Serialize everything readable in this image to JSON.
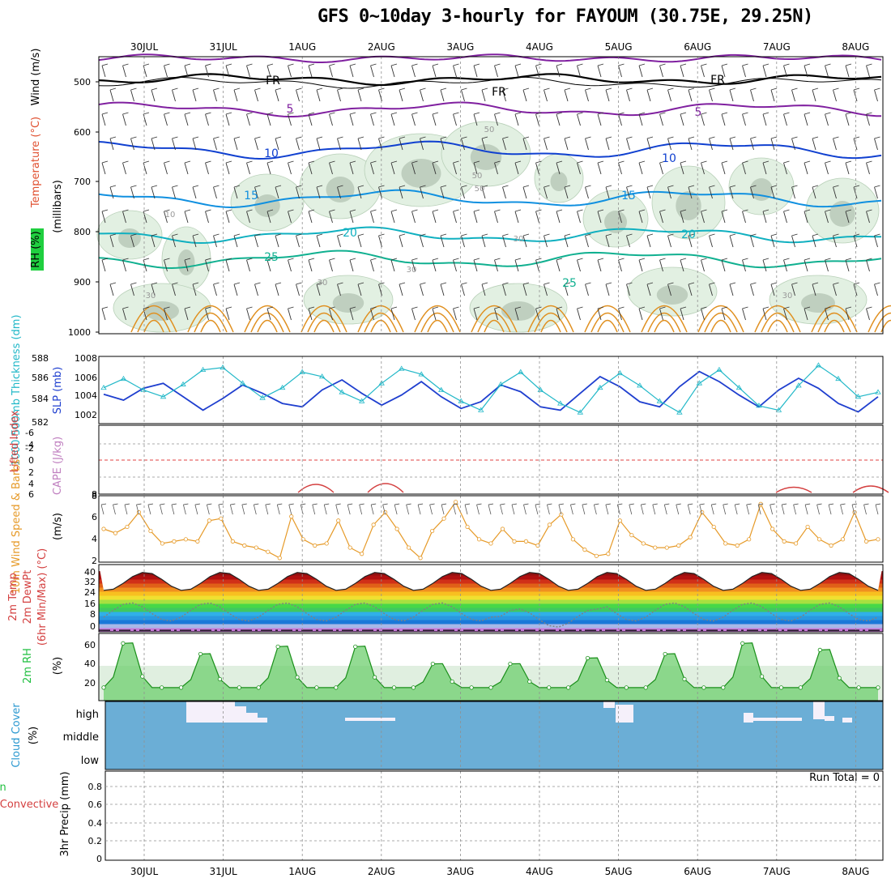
{
  "title": "GFS 0~10day 3-hourly for FAYOUM (30.75E, 29.25N)",
  "dates": [
    "30JUL",
    "31JUL",
    "1AUG",
    "2AUG",
    "3AUG",
    "4AUG",
    "5AUG",
    "6AUG",
    "7AUG",
    "8AUG"
  ],
  "colors": {
    "grid": "#999999",
    "panel_border": "#000000",
    "cloud": "#6baed6",
    "rh_fill": "#1fbf3f",
    "slp": "#1f3fcf",
    "thickness": "#22b8c8",
    "wind10": "#e69a28",
    "lifted": "#d44040",
    "cape": "#c080c0"
  },
  "panels": {
    "upper": {
      "ylabel_wind": "Wind (m/s)",
      "ylabel_temp": "Temperature (°C)",
      "ylabel_rh": "RH (%)",
      "ylabel_mb": "(millibars)",
      "yticks": [
        "500",
        "600",
        "700",
        "800",
        "900",
        "1000"
      ],
      "contour_labels": [
        "FR",
        "FR",
        "FR",
        "5",
        "5",
        "10",
        "10",
        "15",
        "15",
        "20",
        "20",
        "25",
        "25",
        "10",
        "30",
        "30",
        "30",
        "30",
        "30",
        "50",
        "50",
        "50"
      ]
    },
    "slp": {
      "ylabel_thick": "1000-500mb Thickness (dm)",
      "ylabel_slp": "SLP (mb)",
      "yticks_left": [
        "588",
        "586",
        "584",
        "582"
      ],
      "yticks_right": [
        "1008",
        "1006",
        "1004",
        "1002"
      ]
    },
    "cape": {
      "ylabel_li": "Lifted Index",
      "ylabel_cape": "CAPE (J/kg)",
      "yticks_left": [
        "-6",
        "-4",
        "-2",
        "0",
        "2",
        "4",
        "6"
      ],
      "yticks_right": [
        "8"
      ]
    },
    "wind10": {
      "ylabel": "10m Wind Speed & Barbs",
      "ylabel_unit": "(m/s)",
      "yticks": [
        "8",
        "6",
        "4",
        "2"
      ]
    },
    "temp": {
      "ylabel_a": "2m Temp",
      "ylabel_b": "2m DewPt",
      "ylabel_c": "(6hr Min/Max) (°C)",
      "yticks": [
        "40",
        "32",
        "24",
        "16",
        "8",
        "0"
      ]
    },
    "rh": {
      "ylabel": "2m RH",
      "ylabel_unit": "(%)",
      "yticks": [
        "60",
        "40",
        "20"
      ]
    },
    "cloud": {
      "ylabel": "Cloud Cover",
      "ylabel_unit": "(%)",
      "levels": [
        "high",
        "middle",
        "low"
      ]
    },
    "precip": {
      "ylabel_a": "Total / Rain",
      "ylabel_b": "Convective",
      "ylabel_c": "3hr Precip (mm)",
      "yticks": [
        "0.8",
        "0.6",
        "0.4",
        "0.2",
        "0"
      ],
      "run_total": "Run Total = 0"
    }
  },
  "chart_data": [
    {
      "type": "line",
      "title": "GFS 0~10day 3-hourly for FAYOUM (30.75E, 29.25N)",
      "x": [
        "30JUL",
        "31JUL",
        "1AUG",
        "2AUG",
        "3AUG",
        "4AUG",
        "5AUG",
        "6AUG",
        "7AUG",
        "8AUG"
      ],
      "series": [
        {
          "name": "SLP (mb)",
          "values": [
            1004.5,
            1005.5,
            1003.0,
            1006.0,
            1002.5,
            1006.5,
            1003.0,
            1007.5,
            1003.0,
            1004.0
          ]
        },
        {
          "name": "1000-500mb Thickness (dm)",
          "values": [
            585.0,
            587.0,
            584.5,
            586.5,
            584.0,
            585.5,
            583.5,
            586.0,
            584.0,
            586.5
          ]
        }
      ],
      "ylim_left": [
        582,
        588
      ],
      "ylim_right": [
        1001,
        1009
      ]
    },
    {
      "type": "line",
      "x": [
        "30JUL",
        "31JUL",
        "1AUG",
        "2AUG",
        "3AUG",
        "4AUG",
        "5AUG",
        "6AUG",
        "7AUG",
        "8AUG"
      ],
      "series": [
        {
          "name": "10m Wind Speed & Barbs",
          "values": [
            5.0,
            4.0,
            3.5,
            4.5,
            4.0,
            5.5,
            3.5,
            4.0,
            5.0,
            4.5
          ]
        }
      ],
      "ylim": [
        2,
        8
      ]
    },
    {
      "type": "area",
      "x": [
        "30JUL",
        "31JUL",
        "1AUG",
        "2AUG",
        "3AUG",
        "4AUG",
        "5AUG",
        "6AUG",
        "7AUG",
        "8AUG"
      ],
      "series": [
        {
          "name": "2m Temp",
          "values": [
            28,
            38,
            28,
            38,
            28,
            39,
            28,
            38,
            28,
            32
          ]
        },
        {
          "name": "2m DewPt",
          "values": [
            18,
            16,
            19,
            18,
            16,
            10,
            14,
            10,
            18,
            20
          ]
        }
      ],
      "ylim": [
        0,
        44
      ]
    },
    {
      "type": "area",
      "x": [
        "30JUL",
        "31JUL",
        "1AUG",
        "2AUG",
        "3AUG",
        "4AUG",
        "5AUG",
        "6AUG",
        "7AUG",
        "8AUG"
      ],
      "series": [
        {
          "name": "2m RH",
          "values": [
            65,
            55,
            62,
            62,
            42,
            42,
            47,
            50,
            68,
            58
          ]
        }
      ],
      "ylim": [
        0,
        70
      ]
    }
  ]
}
